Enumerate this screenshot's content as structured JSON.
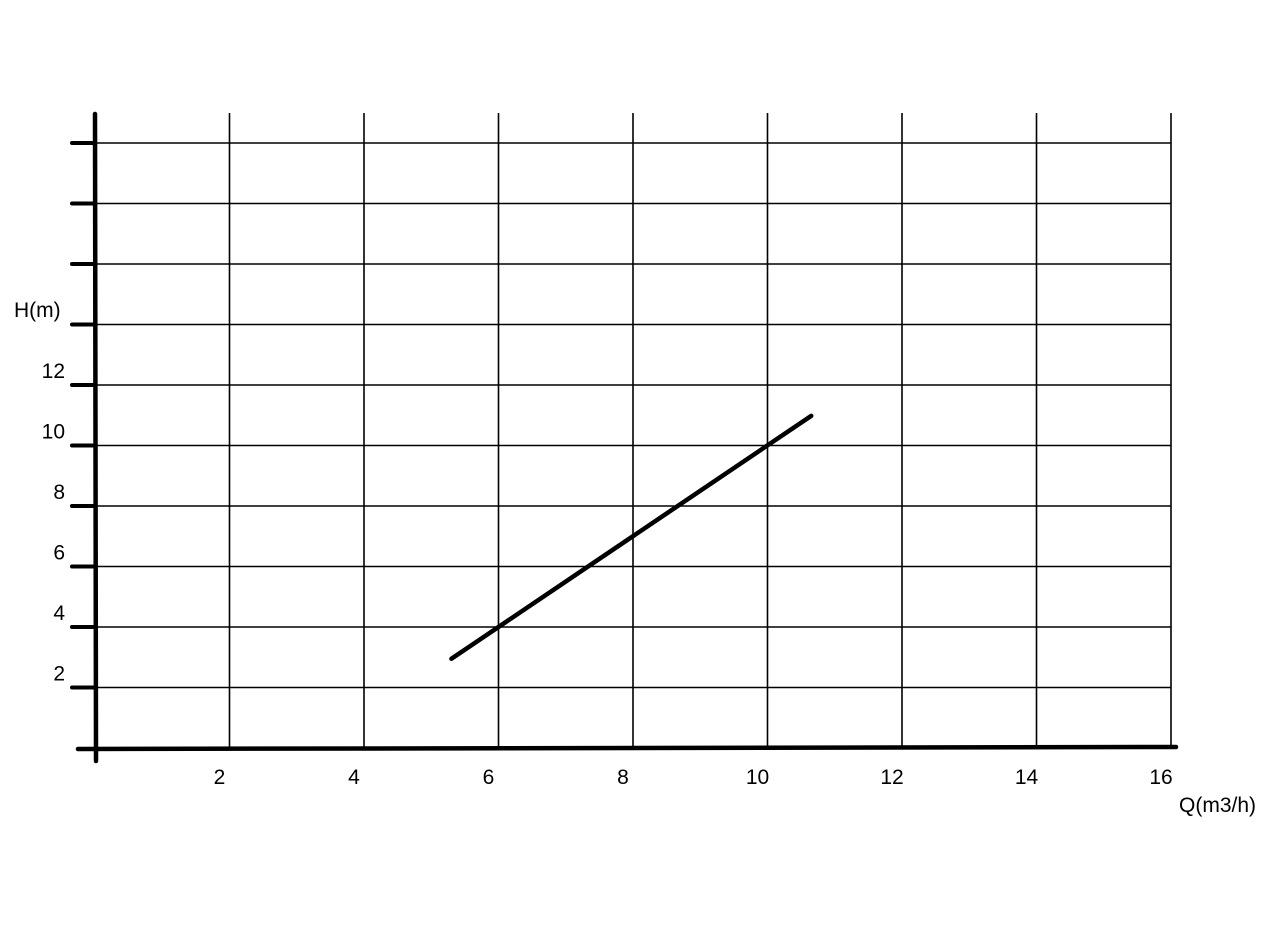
{
  "chart_data": {
    "type": "line",
    "xlabel": "Q(m3/h)",
    "ylabel": "H(m)",
    "xlim": [
      0,
      16
    ],
    "ylim": [
      0,
      20
    ],
    "x_ticks": [
      2,
      4,
      6,
      8,
      10,
      12,
      14,
      16
    ],
    "x_tick_labels": [
      "2",
      "4",
      "6",
      "8",
      "10",
      "12",
      "14",
      "16"
    ],
    "y_ticks": [
      2,
      4,
      6,
      8,
      10,
      12,
      14,
      16,
      18,
      20
    ],
    "y_tick_labels": [
      "2",
      "4",
      "6",
      "8",
      "10",
      "12",
      "",
      "",
      "",
      ""
    ],
    "grid": true,
    "series": [
      {
        "x": [
          5.3,
          10.65
        ],
        "y": [
          2.95,
          10.98
        ],
        "color": "#000000"
      }
    ]
  }
}
